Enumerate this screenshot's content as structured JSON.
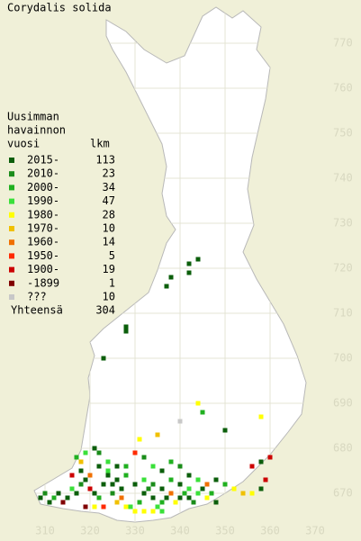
{
  "title": "Corydalis solida",
  "legend": {
    "heading": [
      "Uusimman",
      "havainnon",
      "vuosi"
    ],
    "count_heading": "lkm",
    "entries": [
      {
        "label": "2015-",
        "count": 113,
        "color": "#0b5e0b"
      },
      {
        "label": "2010-",
        "count": 23,
        "color": "#1a8c1a"
      },
      {
        "label": "2000-",
        "count": 34,
        "color": "#20b020"
      },
      {
        "label": "1990-",
        "count": 47,
        "color": "#3ae03a"
      },
      {
        "label": "1980-",
        "count": 28,
        "color": "#ffff00"
      },
      {
        "label": "1970-",
        "count": 10,
        "color": "#f0c000"
      },
      {
        "label": "1960-",
        "count": 14,
        "color": "#f07000"
      },
      {
        "label": "1950-",
        "count": 5,
        "color": "#ff2a00"
      },
      {
        "label": "1900-",
        "count": 19,
        "color": "#cc0000"
      },
      {
        "label": "-1899",
        "count": 1,
        "color": "#800000"
      },
      {
        "label": "???",
        "count": 10,
        "color": "#c8c8c8"
      }
    ],
    "total_label": "Yhteensä",
    "total": 304
  },
  "map": {
    "xlim": [
      300,
      380.2
    ],
    "ylim": [
      659.4,
      779.6
    ],
    "xticks": [
      310,
      320,
      330,
      340,
      350,
      360,
      370
    ],
    "yticks": [
      670,
      680,
      690,
      700,
      710,
      720,
      730,
      740,
      750,
      760,
      770
    ],
    "points": [
      [
        342,
        721,
        0
      ],
      [
        344,
        722,
        0
      ],
      [
        342,
        719,
        0
      ],
      [
        338,
        718,
        0
      ],
      [
        337,
        716,
        0
      ],
      [
        328,
        707,
        0
      ],
      [
        328,
        706,
        0
      ],
      [
        323,
        700,
        0
      ],
      [
        345,
        688,
        2
      ],
      [
        344,
        690,
        4
      ],
      [
        340,
        686,
        10
      ],
      [
        358,
        687,
        4
      ],
      [
        350,
        684,
        0
      ],
      [
        335,
        683,
        5
      ],
      [
        331,
        682,
        4
      ],
      [
        360,
        678,
        8
      ],
      [
        356,
        676,
        8
      ],
      [
        358,
        677,
        0
      ],
      [
        317,
        678,
        2
      ],
      [
        318,
        677,
        5
      ],
      [
        319,
        679,
        3
      ],
      [
        321,
        680,
        0
      ],
      [
        322,
        679,
        1
      ],
      [
        324,
        677,
        3
      ],
      [
        326,
        676,
        0
      ],
      [
        328,
        676,
        2
      ],
      [
        330,
        679,
        7
      ],
      [
        332,
        678,
        1
      ],
      [
        334,
        676,
        3
      ],
      [
        336,
        675,
        0
      ],
      [
        338,
        677,
        2
      ],
      [
        340,
        676,
        1
      ],
      [
        342,
        674,
        0
      ],
      [
        344,
        673,
        3
      ],
      [
        346,
        672,
        6
      ],
      [
        348,
        673,
        0
      ],
      [
        350,
        672,
        2
      ],
      [
        352,
        671,
        4
      ],
      [
        354,
        670,
        5
      ],
      [
        356,
        670,
        4
      ],
      [
        358,
        671,
        0
      ],
      [
        359,
        673,
        8
      ],
      [
        309,
        669,
        0
      ],
      [
        310,
        670,
        1
      ],
      [
        311,
        668,
        0
      ],
      [
        312,
        669,
        2
      ],
      [
        313,
        670,
        0
      ],
      [
        314,
        668,
        9
      ],
      [
        315,
        669,
        0
      ],
      [
        316,
        671,
        3
      ],
      [
        317,
        670,
        0
      ],
      [
        318,
        672,
        1
      ],
      [
        319,
        673,
        0
      ],
      [
        320,
        671,
        8
      ],
      [
        321,
        670,
        0
      ],
      [
        322,
        669,
        2
      ],
      [
        323,
        672,
        0
      ],
      [
        324,
        674,
        0
      ],
      [
        325,
        670,
        1
      ],
      [
        326,
        668,
        5
      ],
      [
        327,
        669,
        6
      ],
      [
        328,
        667,
        4
      ],
      [
        329,
        667,
        3
      ],
      [
        330,
        666,
        4
      ],
      [
        331,
        668,
        2
      ],
      [
        332,
        670,
        0
      ],
      [
        333,
        671,
        1
      ],
      [
        334,
        669,
        0
      ],
      [
        335,
        667,
        3
      ],
      [
        336,
        668,
        2
      ],
      [
        337,
        669,
        0
      ],
      [
        338,
        670,
        6
      ],
      [
        339,
        668,
        4
      ],
      [
        340,
        669,
        0
      ],
      [
        341,
        670,
        2
      ],
      [
        342,
        669,
        0
      ],
      [
        343,
        668,
        1
      ],
      [
        344,
        670,
        3
      ],
      [
        345,
        671,
        0
      ],
      [
        346,
        669,
        4
      ],
      [
        347,
        670,
        2
      ],
      [
        348,
        668,
        0
      ],
      [
        316,
        674,
        8
      ],
      [
        318,
        675,
        0
      ],
      [
        320,
        674,
        6
      ],
      [
        322,
        676,
        0
      ],
      [
        324,
        675,
        3
      ],
      [
        326,
        673,
        0
      ],
      [
        328,
        674,
        2
      ],
      [
        330,
        672,
        0
      ],
      [
        332,
        673,
        3
      ],
      [
        334,
        672,
        1
      ],
      [
        336,
        671,
        0
      ],
      [
        338,
        673,
        2
      ],
      [
        340,
        672,
        0
      ],
      [
        342,
        671,
        3
      ],
      [
        327,
        671,
        0
      ],
      [
        325,
        672,
        0
      ],
      [
        323,
        667,
        7
      ],
      [
        321,
        667,
        4
      ],
      [
        319,
        667,
        9
      ],
      [
        334,
        666,
        4
      ],
      [
        336,
        666,
        3
      ],
      [
        332,
        666,
        4
      ]
    ]
  }
}
